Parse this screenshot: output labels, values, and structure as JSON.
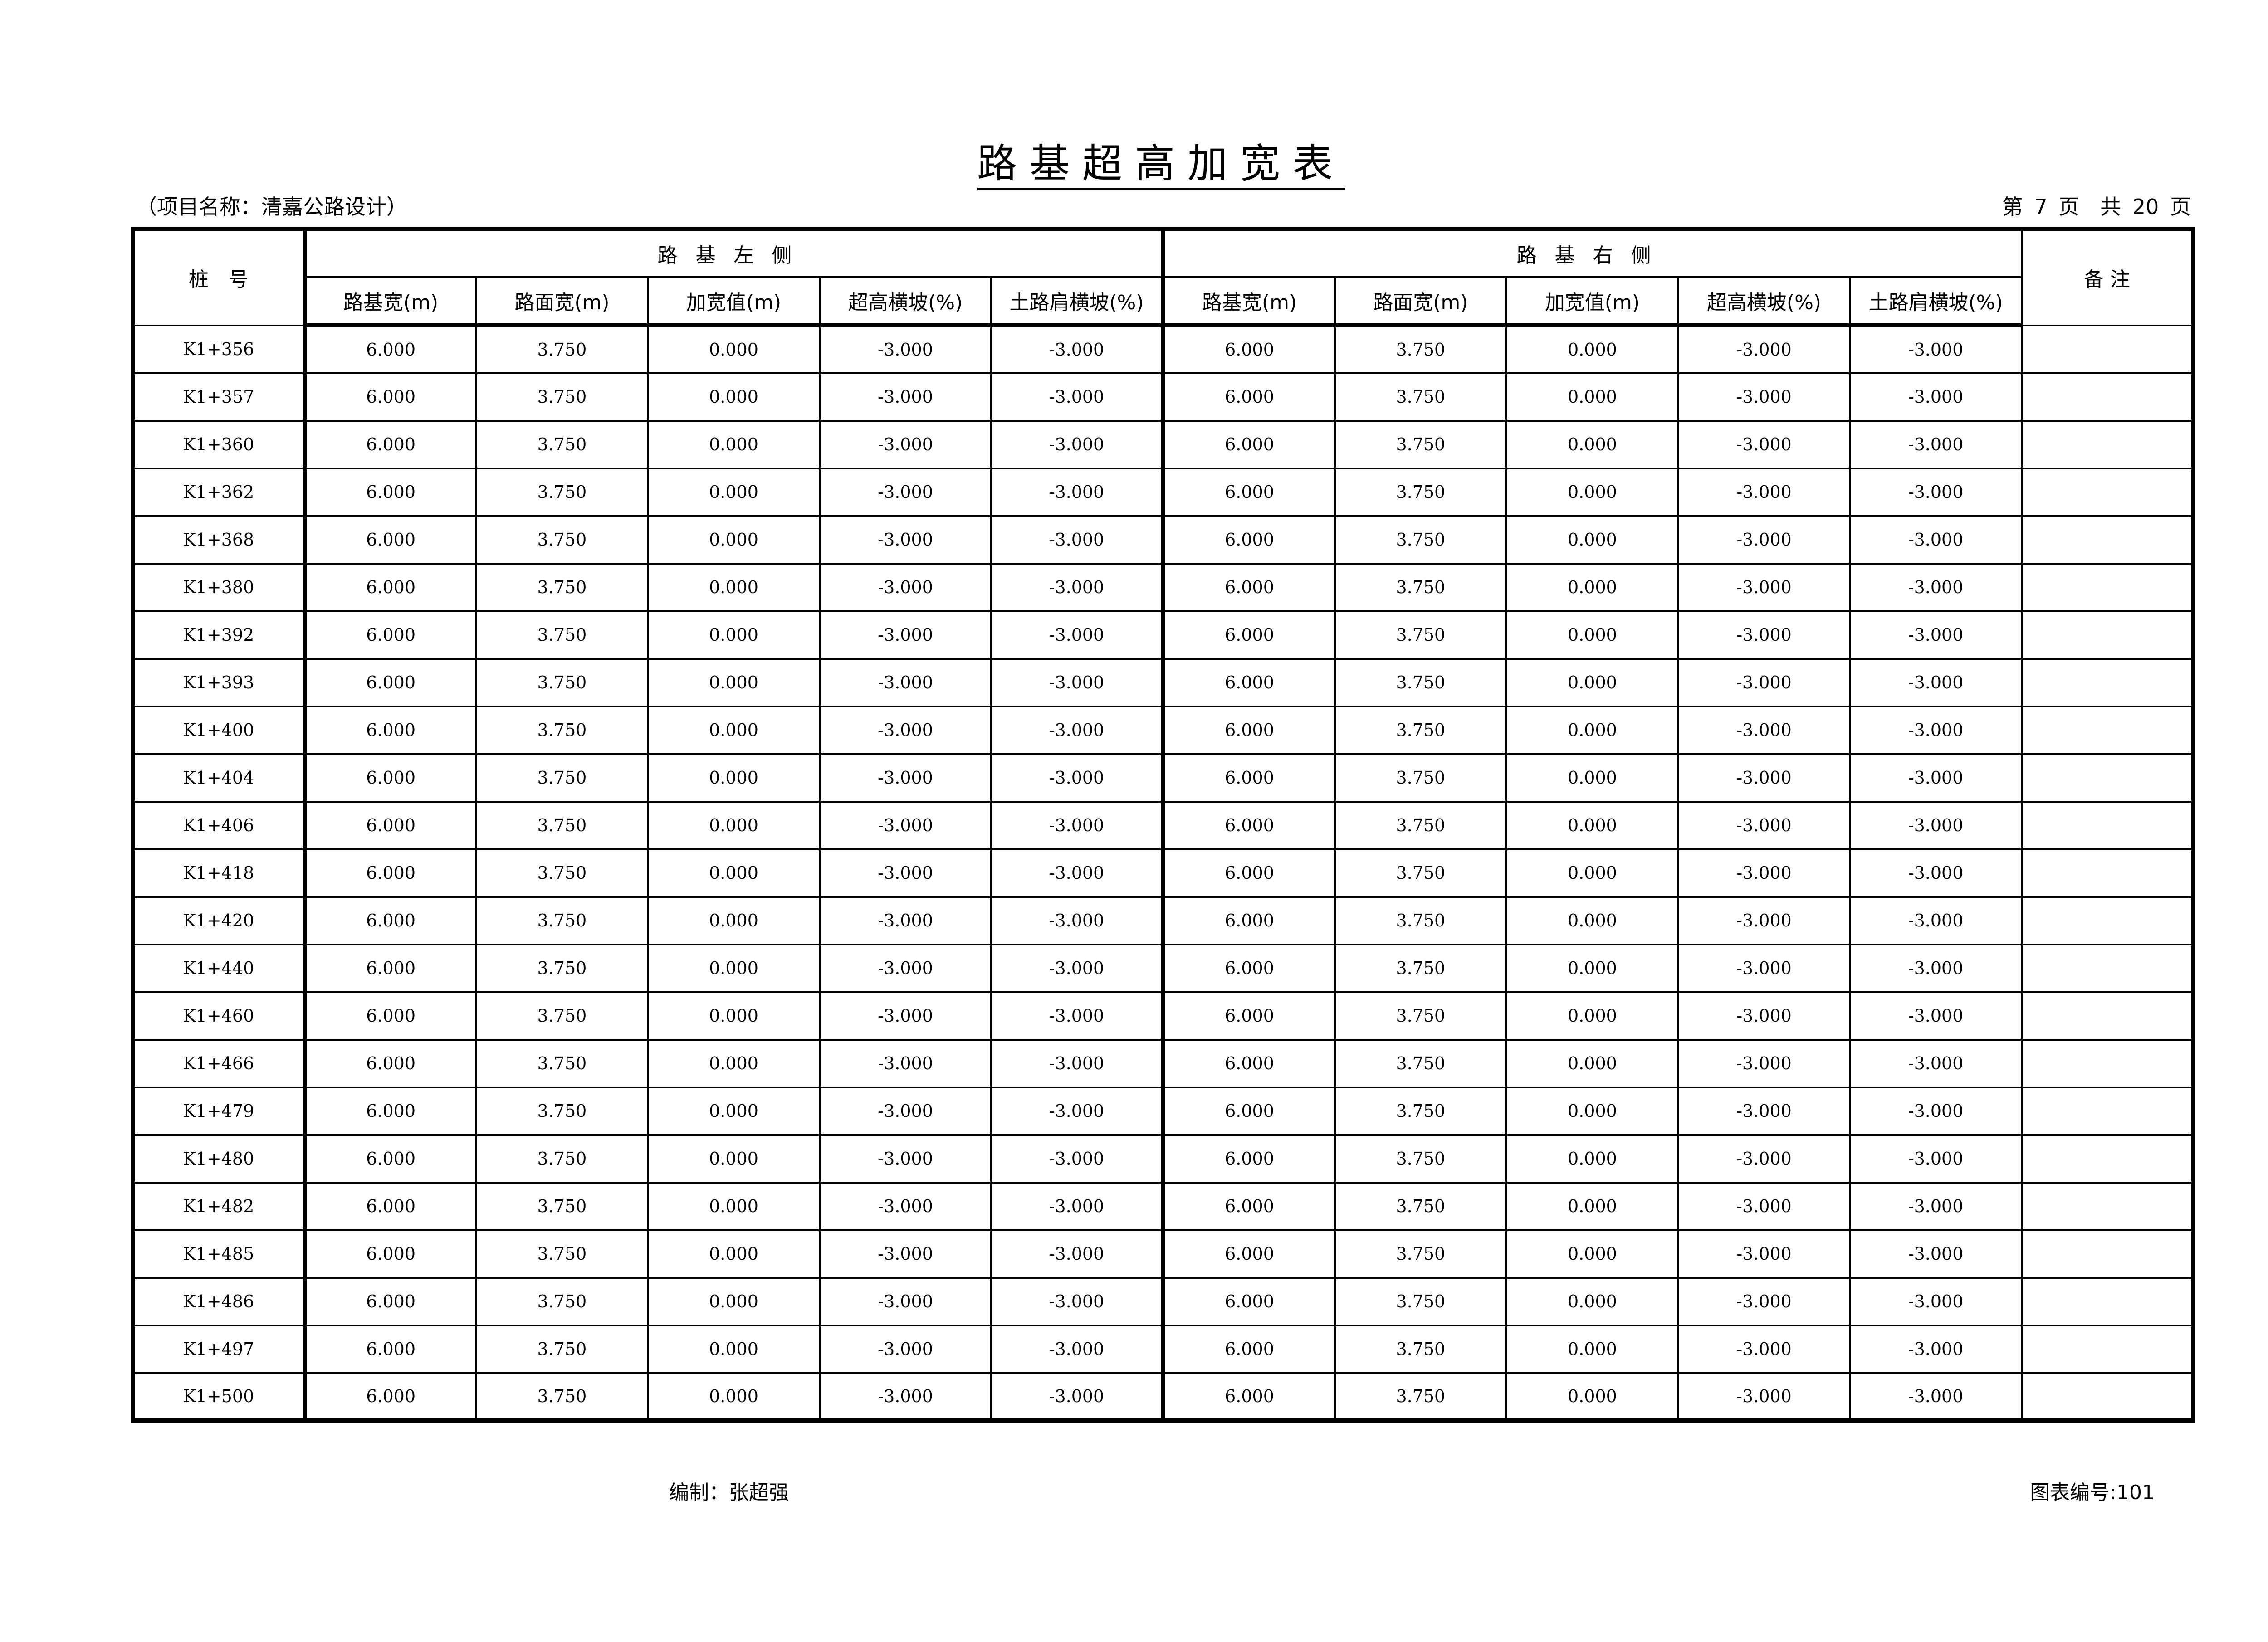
{
  "title": "路基超高加宽表",
  "project": "（项目名称：清嘉公路设计）",
  "page_info": "第 7 页　共 20 页",
  "header": {
    "stake": "桩　号",
    "left_group": "路基左侧",
    "right_group": "路基右侧",
    "remarks": "备 注",
    "left_columns": [
      "路基宽(m)",
      "路面宽(m)",
      "加宽值(m)",
      "超高横坡(%)",
      "土路肩横坡(%)"
    ],
    "right_columns": [
      "路基宽(m)",
      "路面宽(m)",
      "加宽值(m)",
      "超高横坡(%)",
      "土路肩横坡(%)"
    ]
  },
  "rows": [
    {
      "stake": "K1+356",
      "left": [
        "6.000",
        "3.750",
        "0.000",
        "-3.000",
        "-3.000"
      ],
      "right": [
        "6.000",
        "3.750",
        "0.000",
        "-3.000",
        "-3.000"
      ],
      "remark": ""
    },
    {
      "stake": "K1+357",
      "left": [
        "6.000",
        "3.750",
        "0.000",
        "-3.000",
        "-3.000"
      ],
      "right": [
        "6.000",
        "3.750",
        "0.000",
        "-3.000",
        "-3.000"
      ],
      "remark": ""
    },
    {
      "stake": "K1+360",
      "left": [
        "6.000",
        "3.750",
        "0.000",
        "-3.000",
        "-3.000"
      ],
      "right": [
        "6.000",
        "3.750",
        "0.000",
        "-3.000",
        "-3.000"
      ],
      "remark": ""
    },
    {
      "stake": "K1+362",
      "left": [
        "6.000",
        "3.750",
        "0.000",
        "-3.000",
        "-3.000"
      ],
      "right": [
        "6.000",
        "3.750",
        "0.000",
        "-3.000",
        "-3.000"
      ],
      "remark": ""
    },
    {
      "stake": "K1+368",
      "left": [
        "6.000",
        "3.750",
        "0.000",
        "-3.000",
        "-3.000"
      ],
      "right": [
        "6.000",
        "3.750",
        "0.000",
        "-3.000",
        "-3.000"
      ],
      "remark": ""
    },
    {
      "stake": "K1+380",
      "left": [
        "6.000",
        "3.750",
        "0.000",
        "-3.000",
        "-3.000"
      ],
      "right": [
        "6.000",
        "3.750",
        "0.000",
        "-3.000",
        "-3.000"
      ],
      "remark": ""
    },
    {
      "stake": "K1+392",
      "left": [
        "6.000",
        "3.750",
        "0.000",
        "-3.000",
        "-3.000"
      ],
      "right": [
        "6.000",
        "3.750",
        "0.000",
        "-3.000",
        "-3.000"
      ],
      "remark": ""
    },
    {
      "stake": "K1+393",
      "left": [
        "6.000",
        "3.750",
        "0.000",
        "-3.000",
        "-3.000"
      ],
      "right": [
        "6.000",
        "3.750",
        "0.000",
        "-3.000",
        "-3.000"
      ],
      "remark": ""
    },
    {
      "stake": "K1+400",
      "left": [
        "6.000",
        "3.750",
        "0.000",
        "-3.000",
        "-3.000"
      ],
      "right": [
        "6.000",
        "3.750",
        "0.000",
        "-3.000",
        "-3.000"
      ],
      "remark": ""
    },
    {
      "stake": "K1+404",
      "left": [
        "6.000",
        "3.750",
        "0.000",
        "-3.000",
        "-3.000"
      ],
      "right": [
        "6.000",
        "3.750",
        "0.000",
        "-3.000",
        "-3.000"
      ],
      "remark": ""
    },
    {
      "stake": "K1+406",
      "left": [
        "6.000",
        "3.750",
        "0.000",
        "-3.000",
        "-3.000"
      ],
      "right": [
        "6.000",
        "3.750",
        "0.000",
        "-3.000",
        "-3.000"
      ],
      "remark": ""
    },
    {
      "stake": "K1+418",
      "left": [
        "6.000",
        "3.750",
        "0.000",
        "-3.000",
        "-3.000"
      ],
      "right": [
        "6.000",
        "3.750",
        "0.000",
        "-3.000",
        "-3.000"
      ],
      "remark": ""
    },
    {
      "stake": "K1+420",
      "left": [
        "6.000",
        "3.750",
        "0.000",
        "-3.000",
        "-3.000"
      ],
      "right": [
        "6.000",
        "3.750",
        "0.000",
        "-3.000",
        "-3.000"
      ],
      "remark": ""
    },
    {
      "stake": "K1+440",
      "left": [
        "6.000",
        "3.750",
        "0.000",
        "-3.000",
        "-3.000"
      ],
      "right": [
        "6.000",
        "3.750",
        "0.000",
        "-3.000",
        "-3.000"
      ],
      "remark": ""
    },
    {
      "stake": "K1+460",
      "left": [
        "6.000",
        "3.750",
        "0.000",
        "-3.000",
        "-3.000"
      ],
      "right": [
        "6.000",
        "3.750",
        "0.000",
        "-3.000",
        "-3.000"
      ],
      "remark": ""
    },
    {
      "stake": "K1+466",
      "left": [
        "6.000",
        "3.750",
        "0.000",
        "-3.000",
        "-3.000"
      ],
      "right": [
        "6.000",
        "3.750",
        "0.000",
        "-3.000",
        "-3.000"
      ],
      "remark": ""
    },
    {
      "stake": "K1+479",
      "left": [
        "6.000",
        "3.750",
        "0.000",
        "-3.000",
        "-3.000"
      ],
      "right": [
        "6.000",
        "3.750",
        "0.000",
        "-3.000",
        "-3.000"
      ],
      "remark": ""
    },
    {
      "stake": "K1+480",
      "left": [
        "6.000",
        "3.750",
        "0.000",
        "-3.000",
        "-3.000"
      ],
      "right": [
        "6.000",
        "3.750",
        "0.000",
        "-3.000",
        "-3.000"
      ],
      "remark": ""
    },
    {
      "stake": "K1+482",
      "left": [
        "6.000",
        "3.750",
        "0.000",
        "-3.000",
        "-3.000"
      ],
      "right": [
        "6.000",
        "3.750",
        "0.000",
        "-3.000",
        "-3.000"
      ],
      "remark": ""
    },
    {
      "stake": "K1+485",
      "left": [
        "6.000",
        "3.750",
        "0.000",
        "-3.000",
        "-3.000"
      ],
      "right": [
        "6.000",
        "3.750",
        "0.000",
        "-3.000",
        "-3.000"
      ],
      "remark": ""
    },
    {
      "stake": "K1+486",
      "left": [
        "6.000",
        "3.750",
        "0.000",
        "-3.000",
        "-3.000"
      ],
      "right": [
        "6.000",
        "3.750",
        "0.000",
        "-3.000",
        "-3.000"
      ],
      "remark": ""
    },
    {
      "stake": "K1+497",
      "left": [
        "6.000",
        "3.750",
        "0.000",
        "-3.000",
        "-3.000"
      ],
      "right": [
        "6.000",
        "3.750",
        "0.000",
        "-3.000",
        "-3.000"
      ],
      "remark": ""
    },
    {
      "stake": "K1+500",
      "left": [
        "6.000",
        "3.750",
        "0.000",
        "-3.000",
        "-3.000"
      ],
      "right": [
        "6.000",
        "3.750",
        "0.000",
        "-3.000",
        "-3.000"
      ],
      "remark": ""
    }
  ],
  "footer": {
    "editor": "编制：张超强",
    "chart_number": "图表编号:101"
  }
}
